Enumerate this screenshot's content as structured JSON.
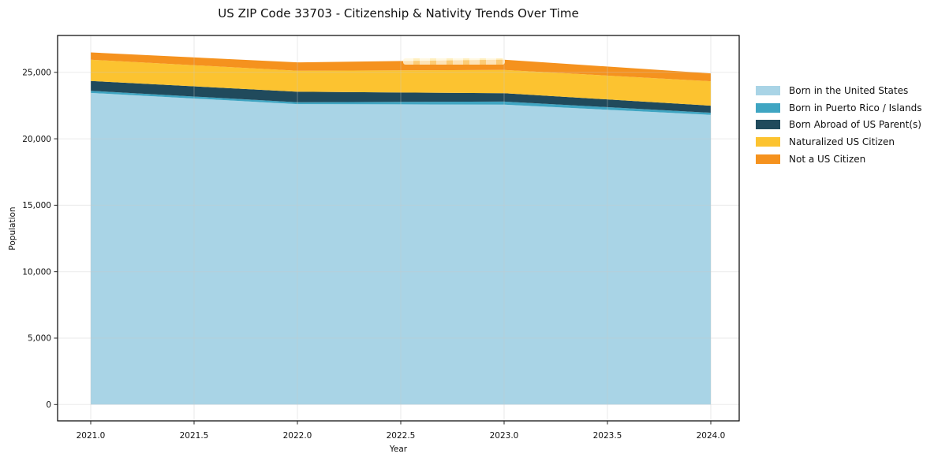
{
  "chart_data": {
    "type": "area",
    "stacked": true,
    "title": "US ZIP Code 33703 - Citizenship & Nativity Trends Over Time",
    "xlabel": "Year",
    "ylabel": "Population",
    "x": [
      2021,
      2022,
      2023,
      2024
    ],
    "series": [
      {
        "name": "Born in the United States",
        "color": "#a9d4e6",
        "values": [
          23450,
          22610,
          22570,
          21800
        ]
      },
      {
        "name": "Born in Puerto Rico / Islands",
        "color": "#3fa5c2",
        "values": [
          160,
          140,
          230,
          160
        ]
      },
      {
        "name": "Born Abroad of US Parent(s)",
        "color": "#204a5c",
        "values": [
          740,
          790,
          630,
          530
        ]
      },
      {
        "name": "Naturalized US Citizen",
        "color": "#fcc330",
        "values": [
          1600,
          1580,
          1750,
          1840
        ]
      },
      {
        "name": "Not a US Citizen",
        "color": "#f5921e",
        "values": [
          550,
          630,
          770,
          590
        ]
      }
    ],
    "x_ticks": [
      2021.0,
      2021.5,
      2022.0,
      2022.5,
      2023.0,
      2023.5,
      2024.0
    ],
    "x_tick_labels": [
      "2021.0",
      "2021.5",
      "2022.0",
      "2022.5",
      "2023.0",
      "2023.5",
      "2024.0"
    ],
    "y_ticks": [
      0,
      5000,
      10000,
      15000,
      20000,
      25000
    ],
    "y_tick_labels": [
      "0",
      "5,000",
      "10,000",
      "15,000",
      "20,000",
      "25,000"
    ],
    "ylim": [
      -1230,
      27780
    ],
    "xlim": [
      2020.84,
      2024.14
    ],
    "grid": true,
    "legend_position": "right",
    "frame_color": "#000000",
    "grid_color": "#c8c8c8",
    "tick_color": "#262626"
  }
}
